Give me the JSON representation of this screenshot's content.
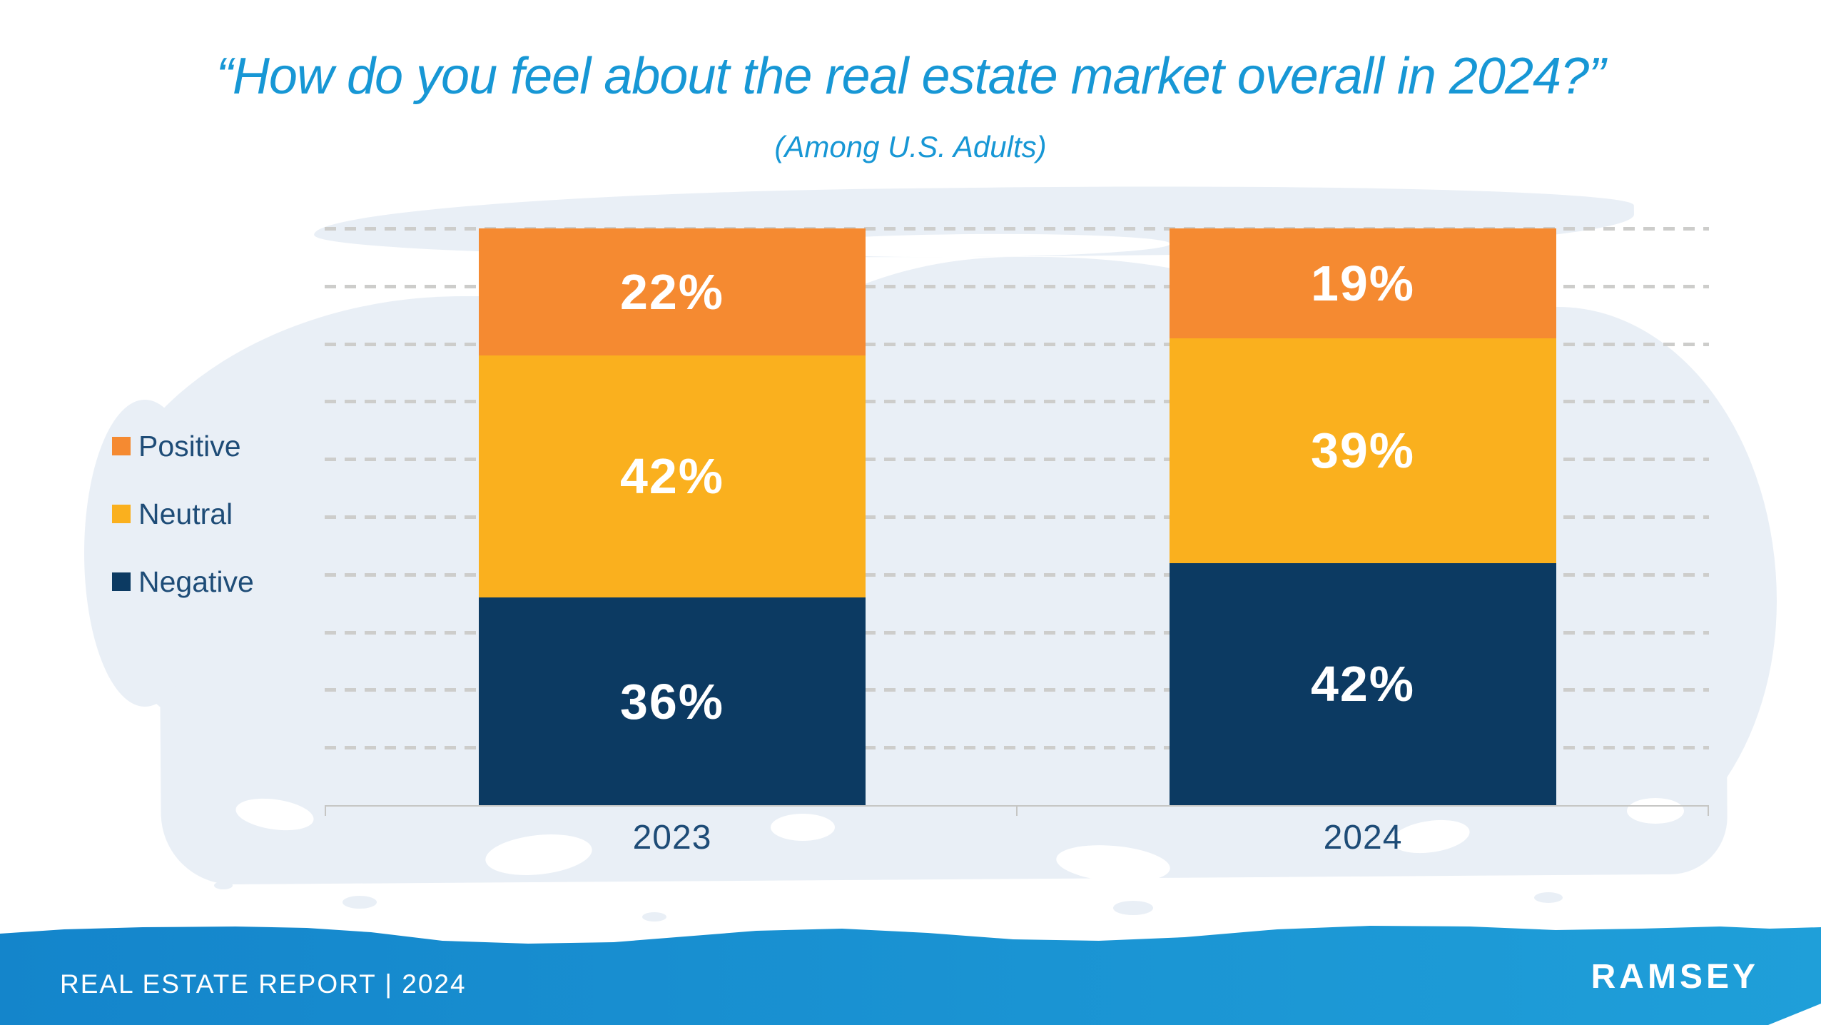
{
  "page": {
    "title": "“How do you feel about the real estate market overall in 2024?”",
    "subtitle": "(Among U.S. Adults)"
  },
  "footer": {
    "report_label": "REAL ESTATE REPORT | 2024",
    "brand": "RAMSEY"
  },
  "colors": {
    "title_blue": "#1797D5",
    "navy_text": "#1E4C77",
    "gridline": "#CDCDCB",
    "axis": "#C6C6C4",
    "wash_blue": "#E9EFF6",
    "footer_blue_left": "#1485CB",
    "footer_blue_right": "#1F9FD9",
    "label_white": "#FFFFFF"
  },
  "chart_data": {
    "type": "bar",
    "stacked": true,
    "orientation": "vertical",
    "title": "“How do you feel about the real estate market overall in 2024?”",
    "subtitle": "(Among U.S. Adults)",
    "categories": [
      "2023",
      "2024"
    ],
    "series": [
      {
        "name": "Positive",
        "color": "#F58A31",
        "values": [
          22,
          19
        ]
      },
      {
        "name": "Neutral",
        "color": "#FAB01E",
        "values": [
          42,
          39
        ]
      },
      {
        "name": "Negative",
        "color": "#0C3A62",
        "values": [
          36,
          42
        ]
      }
    ],
    "stack_order_top_to_bottom": [
      "Positive",
      "Neutral",
      "Negative"
    ],
    "value_suffix": "%",
    "ylim": [
      0,
      100
    ],
    "y_gridlines_every_pct": 10,
    "gridline_style": "dotted",
    "x_tick_labels": [
      "2023",
      "2024"
    ],
    "legend_position": "left",
    "data_labels": "white bold percent labels centered in each segment"
  }
}
